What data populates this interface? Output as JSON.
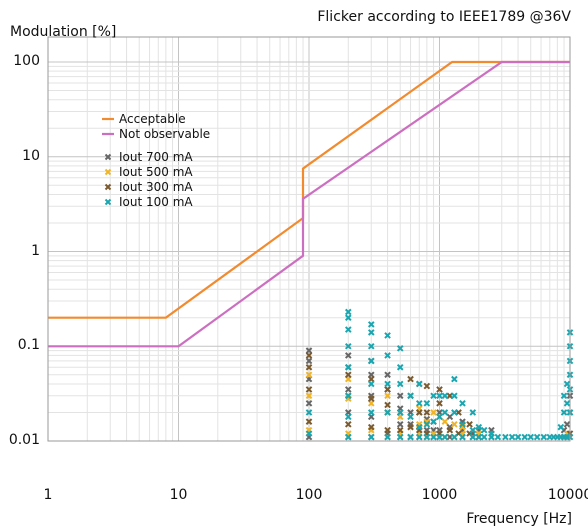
{
  "chart_data": {
    "type": "scatter",
    "title": "Flicker according to IEEE1789 @36V",
    "ylabel": "Modulation [%]",
    "xlabel": "Frequency [Hz]",
    "x_scale": "log",
    "y_scale": "log",
    "xlim": [
      1,
      10000
    ],
    "ylim": [
      0.01,
      100
    ],
    "grid": true,
    "legend_position": "top-left",
    "x_ticks": [
      {
        "value": 1,
        "label": "1"
      },
      {
        "value": 10,
        "label": "10"
      },
      {
        "value": 100,
        "label": "100"
      },
      {
        "value": 1000,
        "label": "1000"
      },
      {
        "value": 10000,
        "label": "10000"
      }
    ],
    "y_ticks": [
      {
        "value": 0.01,
        "label": "0.01"
      },
      {
        "value": 0.1,
        "label": "0.1"
      },
      {
        "value": 1,
        "label": "1"
      },
      {
        "value": 10,
        "label": "10"
      },
      {
        "value": 100,
        "label": "100"
      }
    ],
    "lines": [
      {
        "name": "Acceptable",
        "color": "#f28a2e",
        "points": [
          [
            1,
            0.2
          ],
          [
            8,
            0.2
          ],
          [
            90,
            2.25
          ],
          [
            90,
            7.5
          ],
          [
            1250,
            100
          ],
          [
            10000,
            100
          ]
        ]
      },
      {
        "name": "Not observable",
        "color": "#cc6fc0",
        "points": [
          [
            1,
            0.1
          ],
          [
            10,
            0.1
          ],
          [
            90,
            0.9
          ],
          [
            90,
            3.6
          ],
          [
            3000,
            100
          ],
          [
            10000,
            100
          ]
        ]
      }
    ],
    "series": [
      {
        "name": "Iout 700 mA",
        "color": "#666666",
        "points": [
          [
            100,
            0.011
          ],
          [
            100,
            0.025
          ],
          [
            100,
            0.045
          ],
          [
            100,
            0.07
          ],
          [
            100,
            0.09
          ],
          [
            200,
            0.011
          ],
          [
            200,
            0.02
          ],
          [
            200,
            0.035
          ],
          [
            200,
            0.06
          ],
          [
            200,
            0.08
          ],
          [
            300,
            0.011
          ],
          [
            300,
            0.018
          ],
          [
            300,
            0.03
          ],
          [
            300,
            0.05
          ],
          [
            300,
            0.07
          ],
          [
            400,
            0.012
          ],
          [
            400,
            0.02
          ],
          [
            400,
            0.035
          ],
          [
            400,
            0.05
          ],
          [
            500,
            0.011
          ],
          [
            500,
            0.015
          ],
          [
            500,
            0.022
          ],
          [
            500,
            0.03
          ],
          [
            600,
            0.011
          ],
          [
            600,
            0.015
          ],
          [
            600,
            0.02
          ],
          [
            700,
            0.011
          ],
          [
            700,
            0.014
          ],
          [
            700,
            0.02
          ],
          [
            800,
            0.011
          ],
          [
            800,
            0.013
          ],
          [
            800,
            0.017
          ],
          [
            900,
            0.011
          ],
          [
            900,
            0.013
          ],
          [
            900,
            0.016
          ],
          [
            1000,
            0.011
          ],
          [
            1000,
            0.013
          ],
          [
            1000,
            0.02
          ],
          [
            1200,
            0.011
          ],
          [
            1200,
            0.014
          ],
          [
            1200,
            0.018
          ],
          [
            1500,
            0.011
          ],
          [
            1500,
            0.013
          ],
          [
            1500,
            0.016
          ],
          [
            1800,
            0.011
          ],
          [
            1800,
            0.012
          ],
          [
            2000,
            0.011
          ],
          [
            2000,
            0.013
          ],
          [
            2500,
            0.011
          ],
          [
            2500,
            0.013
          ],
          [
            9000,
            0.011
          ],
          [
            9000,
            0.013
          ],
          [
            9500,
            0.015
          ],
          [
            10000,
            0.02
          ],
          [
            10000,
            0.03
          ]
        ]
      },
      {
        "name": "Iout 500 mA",
        "color": "#f0b428",
        "points": [
          [
            100,
            0.013
          ],
          [
            100,
            0.03
          ],
          [
            100,
            0.05
          ],
          [
            200,
            0.012
          ],
          [
            200,
            0.028
          ],
          [
            200,
            0.045
          ],
          [
            300,
            0.013
          ],
          [
            300,
            0.025
          ],
          [
            400,
            0.011
          ],
          [
            400,
            0.02
          ],
          [
            400,
            0.03
          ],
          [
            500,
            0.012
          ],
          [
            500,
            0.018
          ],
          [
            700,
            0.012
          ],
          [
            700,
            0.015
          ],
          [
            700,
            0.022
          ],
          [
            800,
            0.011
          ],
          [
            800,
            0.016
          ],
          [
            900,
            0.012
          ],
          [
            900,
            0.02
          ],
          [
            1000,
            0.012
          ],
          [
            1000,
            0.018
          ],
          [
            1100,
            0.011
          ],
          [
            1100,
            0.016
          ],
          [
            1300,
            0.011
          ],
          [
            1300,
            0.015
          ],
          [
            1500,
            0.012
          ],
          [
            1500,
            0.014
          ],
          [
            2000,
            0.012
          ],
          [
            9600,
            0.012
          ]
        ]
      },
      {
        "name": "Iout 300 mA",
        "color": "#7a5a2e",
        "points": [
          [
            100,
            0.016
          ],
          [
            100,
            0.035
          ],
          [
            100,
            0.06
          ],
          [
            100,
            0.08
          ],
          [
            200,
            0.015
          ],
          [
            200,
            0.03
          ],
          [
            200,
            0.05
          ],
          [
            300,
            0.014
          ],
          [
            300,
            0.028
          ],
          [
            300,
            0.045
          ],
          [
            400,
            0.013
          ],
          [
            400,
            0.024
          ],
          [
            400,
            0.035
          ],
          [
            500,
            0.013
          ],
          [
            500,
            0.02
          ],
          [
            600,
            0.014
          ],
          [
            600,
            0.03
          ],
          [
            600,
            0.045
          ],
          [
            700,
            0.013
          ],
          [
            700,
            0.02
          ],
          [
            700,
            0.04
          ],
          [
            800,
            0.012
          ],
          [
            800,
            0.02
          ],
          [
            800,
            0.038
          ],
          [
            1000,
            0.012
          ],
          [
            1000,
            0.025
          ],
          [
            1000,
            0.035
          ],
          [
            1200,
            0.013
          ],
          [
            1200,
            0.03
          ],
          [
            1400,
            0.012
          ],
          [
            1400,
            0.02
          ],
          [
            1700,
            0.012
          ],
          [
            1700,
            0.015
          ],
          [
            2000,
            0.011
          ],
          [
            10000,
            0.012
          ]
        ]
      },
      {
        "name": "Iout 100 mA",
        "color": "#1aa6b0",
        "points": [
          [
            100,
            0.012
          ],
          [
            100,
            0.02
          ],
          [
            200,
            0.011
          ],
          [
            200,
            0.018
          ],
          [
            200,
            0.03
          ],
          [
            200,
            0.06
          ],
          [
            200,
            0.1
          ],
          [
            200,
            0.15
          ],
          [
            200,
            0.2
          ],
          [
            200,
            0.23
          ],
          [
            300,
            0.011
          ],
          [
            300,
            0.02
          ],
          [
            300,
            0.04
          ],
          [
            300,
            0.07
          ],
          [
            300,
            0.1
          ],
          [
            300,
            0.14
          ],
          [
            300,
            0.17
          ],
          [
            400,
            0.011
          ],
          [
            400,
            0.02
          ],
          [
            400,
            0.04
          ],
          [
            400,
            0.08
          ],
          [
            400,
            0.13
          ],
          [
            500,
            0.011
          ],
          [
            500,
            0.02
          ],
          [
            500,
            0.04
          ],
          [
            500,
            0.06
          ],
          [
            500,
            0.095
          ],
          [
            600,
            0.011
          ],
          [
            600,
            0.018
          ],
          [
            600,
            0.03
          ],
          [
            700,
            0.011
          ],
          [
            700,
            0.014
          ],
          [
            700,
            0.025
          ],
          [
            700,
            0.04
          ],
          [
            800,
            0.011
          ],
          [
            800,
            0.015
          ],
          [
            800,
            0.025
          ],
          [
            900,
            0.011
          ],
          [
            900,
            0.016
          ],
          [
            900,
            0.03
          ],
          [
            1000,
            0.011
          ],
          [
            1000,
            0.018
          ],
          [
            1000,
            0.03
          ],
          [
            1100,
            0.011
          ],
          [
            1100,
            0.02
          ],
          [
            1100,
            0.03
          ],
          [
            1300,
            0.011
          ],
          [
            1300,
            0.02
          ],
          [
            1300,
            0.03
          ],
          [
            1300,
            0.045
          ],
          [
            1500,
            0.011
          ],
          [
            1500,
            0.015
          ],
          [
            1500,
            0.025
          ],
          [
            1800,
            0.011
          ],
          [
            1800,
            0.013
          ],
          [
            1800,
            0.02
          ],
          [
            2000,
            0.011
          ],
          [
            2000,
            0.014
          ],
          [
            2200,
            0.011
          ],
          [
            2200,
            0.013
          ],
          [
            2500,
            0.011
          ],
          [
            2500,
            0.012
          ],
          [
            2800,
            0.011
          ],
          [
            3200,
            0.011
          ],
          [
            3600,
            0.011
          ],
          [
            4000,
            0.011
          ],
          [
            4500,
            0.011
          ],
          [
            5000,
            0.011
          ],
          [
            5600,
            0.011
          ],
          [
            6300,
            0.011
          ],
          [
            7000,
            0.011
          ],
          [
            7500,
            0.011
          ],
          [
            8000,
            0.011
          ],
          [
            8500,
            0.011
          ],
          [
            8500,
            0.014
          ],
          [
            9000,
            0.011
          ],
          [
            9000,
            0.02
          ],
          [
            9000,
            0.03
          ],
          [
            9500,
            0.011
          ],
          [
            9500,
            0.025
          ],
          [
            9500,
            0.04
          ],
          [
            10000,
            0.011
          ],
          [
            10000,
            0.02
          ],
          [
            10000,
            0.035
          ],
          [
            10000,
            0.05
          ],
          [
            10000,
            0.07
          ],
          [
            10000,
            0.1
          ],
          [
            10000,
            0.14
          ]
        ]
      }
    ]
  }
}
